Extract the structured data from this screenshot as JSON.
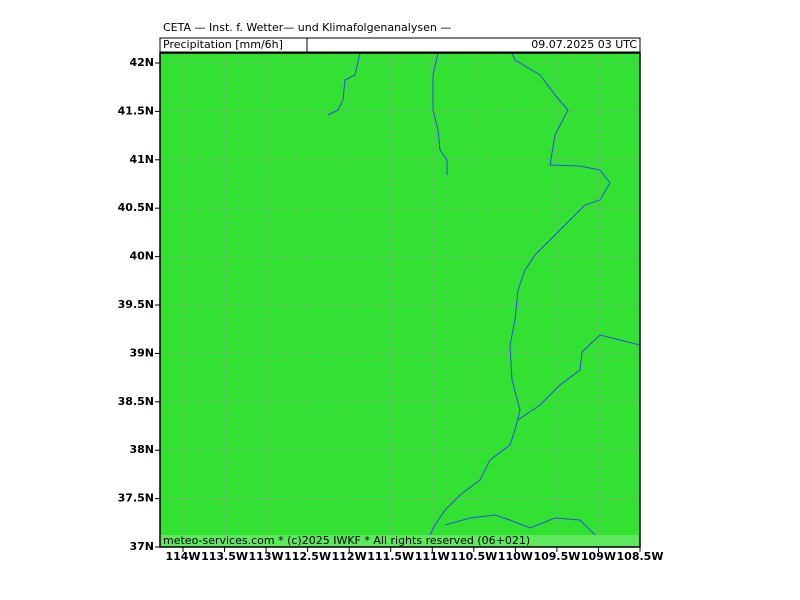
{
  "header": {
    "title": "CETA — Inst. f. Wetter— und Klimafolgenanalysen —",
    "variable": "Precipitation [mm/6h]",
    "valid": "09.07.2025 03 UTC"
  },
  "map": {
    "lat_labels": [
      "42N",
      "41.5N",
      "41N",
      "40.5N",
      "40N",
      "39.5N",
      "39N",
      "38.5N",
      "38N",
      "37.5N",
      "37N"
    ],
    "lon_labels": [
      "114W",
      "113.5W",
      "113W",
      "112.5W",
      "112W",
      "111.5W",
      "111W",
      "110.5W",
      "110W",
      "109.5W",
      "109W",
      "108.5W"
    ]
  },
  "footer": {
    "text": "meteo-services.com * (c)2025 IWKF * All rights reserved (06+021)"
  }
}
